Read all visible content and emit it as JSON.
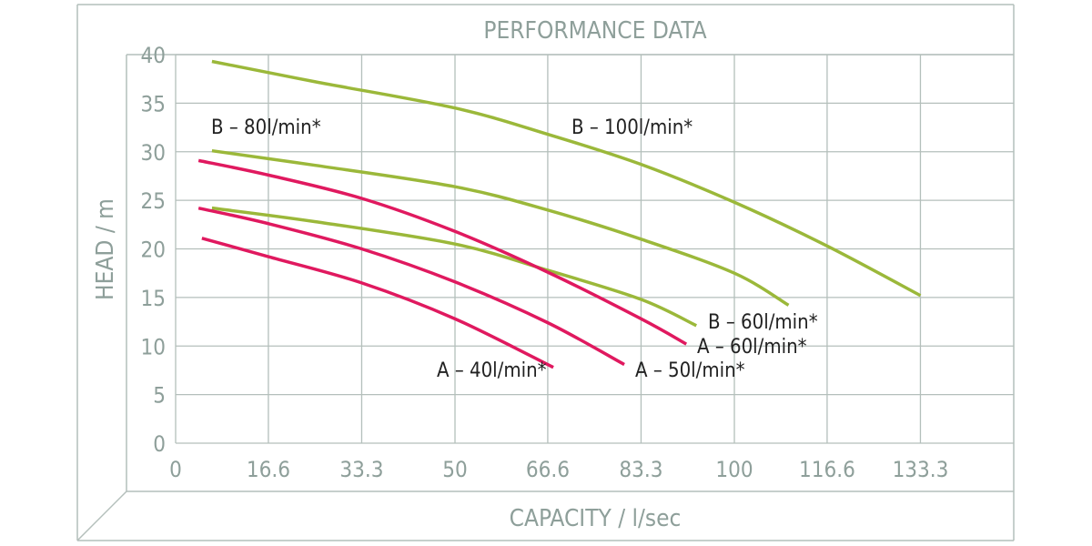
{
  "chart_data": {
    "type": "line",
    "title": "PERFORMANCE DATA",
    "xlabel": "CAPACITY / l/sec",
    "ylabel": "HEAD / m",
    "xlim": [
      0,
      150
    ],
    "ylim": [
      0,
      40
    ],
    "x_ticks": [
      "0",
      "16.6",
      "33.3",
      "50",
      "66.6",
      "83.3",
      "100",
      "116.6",
      "133.3"
    ],
    "y_ticks": [
      "0",
      "5",
      "10",
      "15",
      "20",
      "25",
      "30",
      "35",
      "40"
    ],
    "grid": true,
    "colors": {
      "B": "#9bb83a",
      "A": "#e0195f",
      "grid": "#b4bfbb",
      "text": "#8e9f9a"
    },
    "series": [
      {
        "name": "B – 100l/min*",
        "group": "B",
        "points": [
          [
            6.5,
            39.3
          ],
          [
            25,
            37.2
          ],
          [
            50,
            34.5
          ],
          [
            66.6,
            31.8
          ],
          [
            83.3,
            28.7
          ],
          [
            100,
            24.8
          ],
          [
            116.6,
            20.3
          ],
          [
            133.3,
            15.2
          ]
        ]
      },
      {
        "name": "B – 80l/min*",
        "group": "B",
        "points": [
          [
            6.5,
            30.1
          ],
          [
            25,
            28.6
          ],
          [
            50,
            26.4
          ],
          [
            66.6,
            24.0
          ],
          [
            83.3,
            21.0
          ],
          [
            100,
            17.5
          ],
          [
            109.7,
            14.2
          ]
        ]
      },
      {
        "name": "B – 60l/min*",
        "group": "B",
        "points": [
          [
            6.5,
            24.2
          ],
          [
            25,
            22.8
          ],
          [
            50,
            20.5
          ],
          [
            66.6,
            17.8
          ],
          [
            83.3,
            14.8
          ],
          [
            93.2,
            12.1
          ]
        ]
      },
      {
        "name": "A – 60l/min*",
        "group": "A",
        "points": [
          [
            4.1,
            29.1
          ],
          [
            16.6,
            27.6
          ],
          [
            33.3,
            25.2
          ],
          [
            50,
            21.8
          ],
          [
            66.6,
            17.6
          ],
          [
            83.3,
            12.8
          ],
          [
            91.4,
            10.2
          ]
        ]
      },
      {
        "name": "A – 50l/min*",
        "group": "A",
        "points": [
          [
            4.1,
            24.2
          ],
          [
            16.6,
            22.6
          ],
          [
            33.3,
            20.0
          ],
          [
            50,
            16.6
          ],
          [
            66.6,
            12.4
          ],
          [
            80.3,
            8.1
          ]
        ]
      },
      {
        "name": "A – 40l/min*",
        "group": "A",
        "points": [
          [
            4.7,
            21.1
          ],
          [
            16.6,
            19.2
          ],
          [
            33.3,
            16.5
          ],
          [
            50,
            12.8
          ],
          [
            67.6,
            7.8
          ]
        ]
      }
    ]
  }
}
